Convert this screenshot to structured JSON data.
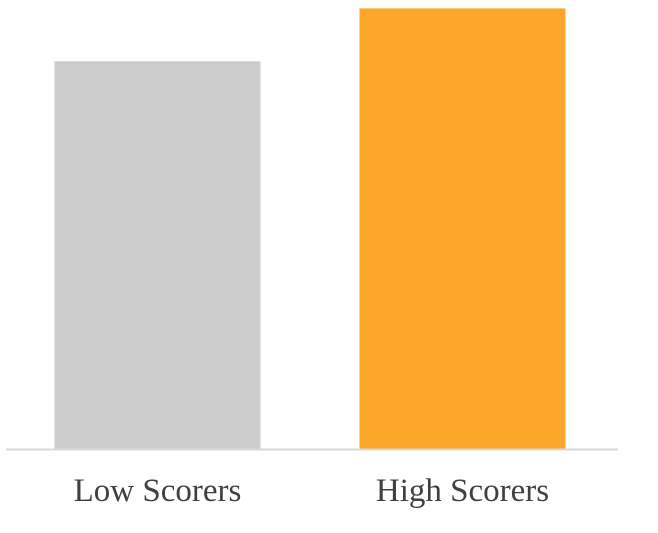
{
  "chart_data": {
    "type": "bar",
    "categories": [
      "Low Scorers",
      "High Scorers"
    ],
    "values": [
      88,
      100
    ],
    "title": "",
    "xlabel": "",
    "ylabel": "",
    "ylim": [
      0,
      101
    ],
    "grid": false,
    "legend": "none",
    "colors": [
      "#cccccc",
      "#fca62a"
    ],
    "axis_color": "#d9d9d9"
  }
}
